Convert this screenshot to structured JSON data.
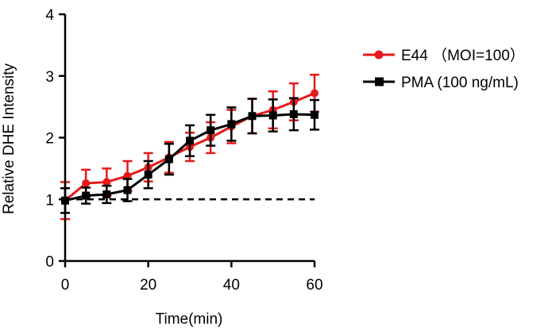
{
  "chart_data": {
    "type": "line",
    "xlabel": "Time(min)",
    "ylabel": "Relative DHE Intensity",
    "xlim": [
      0,
      60
    ],
    "ylim": [
      0,
      4
    ],
    "x_ticks": [
      0,
      20,
      40,
      60
    ],
    "x_tick_labels": [
      "0",
      "20",
      "40",
      "60"
    ],
    "y_ticks": [
      0,
      1,
      2,
      3,
      4
    ],
    "y_tick_labels": [
      "0",
      "1",
      "2",
      "3",
      "4"
    ],
    "grid": false,
    "legend_position": "right",
    "baseline": {
      "y": 1,
      "style": "dashed",
      "color": "#000000"
    },
    "series": [
      {
        "name": "E44 （MOI=100）",
        "color": "#e8191b",
        "marker": "circle",
        "x": [
          0,
          5,
          10,
          15,
          20,
          25,
          30,
          35,
          40,
          45,
          50,
          55,
          60
        ],
        "values": [
          0.98,
          1.26,
          1.28,
          1.38,
          1.52,
          1.68,
          1.85,
          2.0,
          2.18,
          2.35,
          2.45,
          2.58,
          2.72
        ],
        "errors": [
          0.3,
          0.22,
          0.22,
          0.24,
          0.23,
          0.25,
          0.23,
          0.25,
          0.27,
          0.28,
          0.3,
          0.3,
          0.3
        ]
      },
      {
        "name": "PMA (100 ng/mL)",
        "color": "#000000",
        "marker": "square",
        "x": [
          0,
          5,
          10,
          15,
          20,
          25,
          30,
          35,
          40,
          45,
          50,
          55,
          60
        ],
        "values": [
          0.98,
          1.06,
          1.08,
          1.15,
          1.4,
          1.65,
          1.95,
          2.12,
          2.22,
          2.35,
          2.36,
          2.38,
          2.37
        ],
        "errors": [
          0.2,
          0.13,
          0.14,
          0.18,
          0.22,
          0.25,
          0.25,
          0.25,
          0.27,
          0.28,
          0.26,
          0.26,
          0.24
        ]
      }
    ]
  }
}
